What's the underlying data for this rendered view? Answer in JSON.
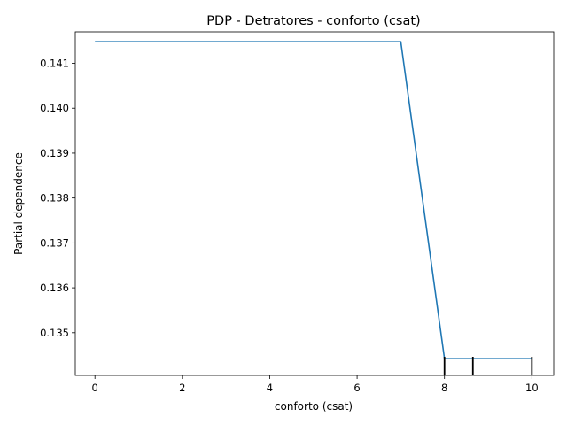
{
  "chart_data": {
    "type": "line",
    "title": "PDP - Detratores - conforto (csat)",
    "xlabel": "conforto (csat)",
    "ylabel": "Partial dependence",
    "xlim": [
      -0.45,
      10.5
    ],
    "ylim": [
      134.05,
      141.7
    ],
    "y_scale_note": "",
    "xticks": [
      0,
      2,
      4,
      6,
      8,
      10
    ],
    "xtick_labels": [
      "0",
      "2",
      "4",
      "6",
      "8",
      "10"
    ],
    "yticks": [
      135,
      136,
      137,
      138,
      139,
      140,
      141
    ],
    "ytick_labels": [
      "0.135",
      "0.136",
      "0.137",
      "0.138",
      "0.139",
      "0.140",
      "0.141"
    ],
    "grid": false,
    "legend": "none",
    "series": [
      {
        "color": "#1f77b4",
        "x": [
          0,
          7,
          8,
          10
        ],
        "y": [
          141.48,
          141.48,
          134.42,
          134.42
        ]
      }
    ],
    "rug_x": [
      8,
      8.65,
      10
    ],
    "rug_color": "#000000"
  }
}
